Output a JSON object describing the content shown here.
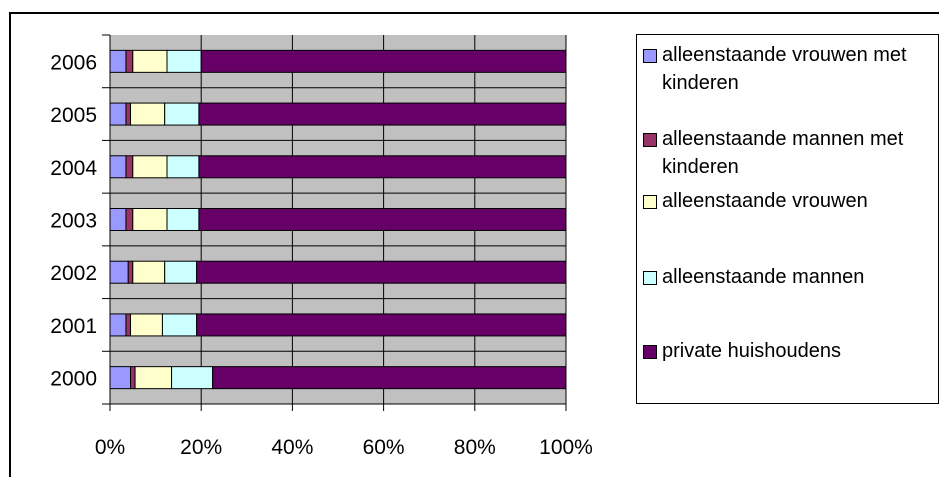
{
  "chart_data": {
    "type": "bar",
    "orientation": "horizontal",
    "stacked": "percent",
    "categories": [
      "2006",
      "2005",
      "2004",
      "2003",
      "2002",
      "2001",
      "2000"
    ],
    "series": [
      {
        "name": "alleenstaande vrouwen met kinderen",
        "color": "#9999ff",
        "values": [
          3.5,
          3.5,
          3.5,
          3.5,
          4,
          3.5,
          4.5
        ]
      },
      {
        "name": "alleenstaande mannen met kinderen",
        "color": "#993366",
        "values": [
          1.5,
          1,
          1.5,
          1.5,
          1,
          1,
          1
        ]
      },
      {
        "name": "alleenstaande vrouwen",
        "color": "#ffffcc",
        "values": [
          7.5,
          7.5,
          7.5,
          7.5,
          7,
          7,
          8
        ]
      },
      {
        "name": "alleenstaande mannen",
        "color": "#ccffff",
        "values": [
          7.5,
          7.5,
          7,
          7,
          7,
          7.5,
          9
        ]
      },
      {
        "name": "private huishoudens",
        "color": "#660066",
        "values": [
          80,
          80.5,
          80.5,
          80.5,
          81,
          81,
          77.5
        ]
      }
    ],
    "x_ticks": [
      "0%",
      "20%",
      "40%",
      "60%",
      "80%",
      "100%"
    ],
    "xlim": [
      0,
      100
    ],
    "grid": true,
    "plot_background": "#c0c0c0",
    "legend_position": "right"
  }
}
